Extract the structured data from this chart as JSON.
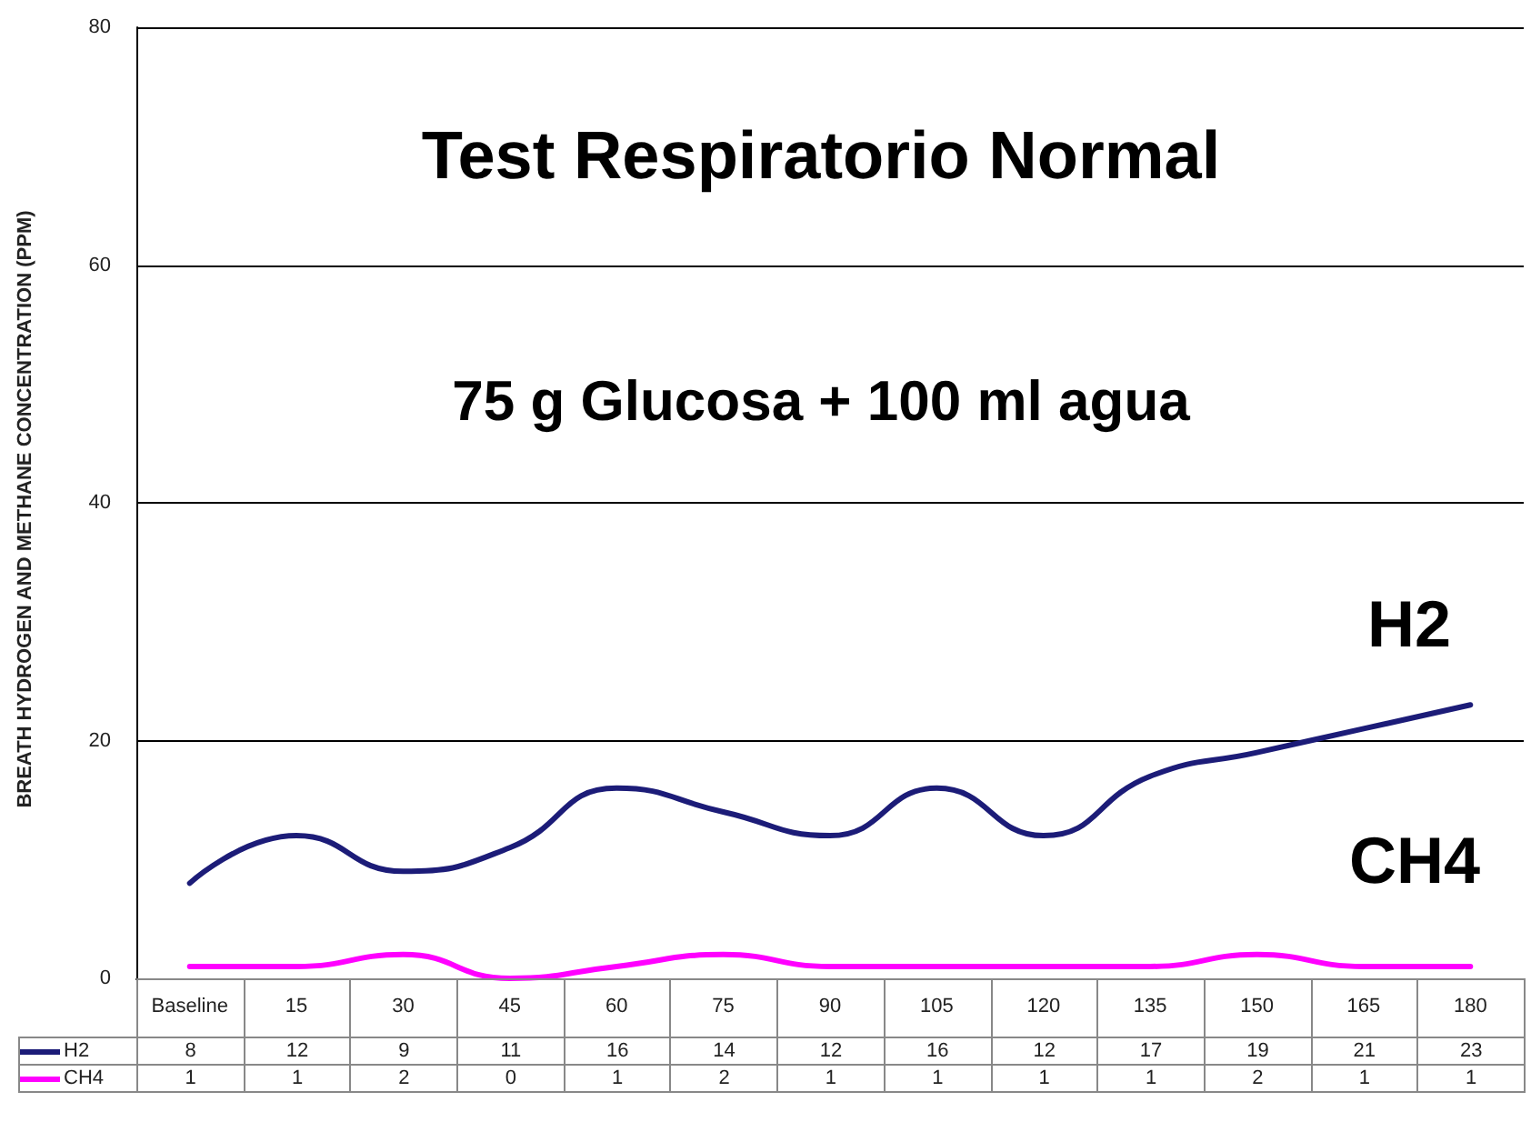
{
  "chart_data": {
    "type": "line",
    "title": "Test Respiratorio Normal",
    "subtitle": "75 g Glucosa + 100 ml agua",
    "ylabel": "BREATH HYDROGEN AND METHANE CONCENTRATION (PPM)",
    "categories": [
      "Baseline",
      "15",
      "30",
      "45",
      "60",
      "75",
      "90",
      "105",
      "120",
      "135",
      "150",
      "165",
      "180"
    ],
    "series": [
      {
        "name": "H2",
        "color": "#1c1c78",
        "values": [
          8,
          12,
          9,
          11,
          16,
          14,
          12,
          16,
          12,
          17,
          19,
          21,
          23
        ]
      },
      {
        "name": "CH4",
        "color": "#ff00ff",
        "values": [
          1,
          1,
          2,
          0,
          1,
          2,
          1,
          1,
          1,
          1,
          2,
          1,
          1
        ]
      }
    ],
    "ylim": [
      0,
      80
    ],
    "yticks": [
      0,
      20,
      40,
      60,
      80
    ],
    "grid": "y",
    "legend": "bottom left",
    "marker": "none",
    "line_style": "solid",
    "data_labels": true
  }
}
